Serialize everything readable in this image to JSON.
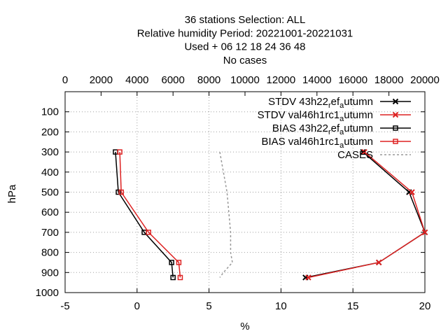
{
  "chart_data": {
    "type": "line",
    "title_lines": [
      "36 stations Selection: ALL",
      "Relative humidity  Period: 20221001-20221031",
      "Used   + 06 12 18 24 36 48",
      "No cases"
    ],
    "xlabel": "%",
    "ylabel": "hPa",
    "x_range": [
      -5,
      20
    ],
    "x_ticks": [
      "-5",
      "0",
      "5",
      "10",
      "15",
      "20"
    ],
    "x_tick_values": [
      -5,
      0,
      5,
      10,
      15,
      20
    ],
    "x2_range": [
      0,
      20000
    ],
    "x2_ticks": [
      "0",
      "2000",
      "4000",
      "6000",
      "8000",
      "10000",
      "12000",
      "14000",
      "16000",
      "18000",
      "20000"
    ],
    "x2_tick_values": [
      0,
      2000,
      4000,
      6000,
      8000,
      10000,
      12000,
      14000,
      16000,
      18000,
      20000
    ],
    "y_range": [
      1000,
      0
    ],
    "y_ticks": [
      "100",
      "200",
      "300",
      "400",
      "500",
      "600",
      "700",
      "800",
      "900",
      "1000"
    ],
    "y_tick_values": [
      100,
      200,
      300,
      400,
      500,
      600,
      700,
      800,
      900,
      1000
    ],
    "grid": true,
    "legend_position": "top-right",
    "series": [
      {
        "name": "STDV 43h22_ref_autumn",
        "legend_parts": [
          [
            "STDV 43h22",
            "n"
          ],
          [
            "r",
            "s"
          ],
          [
            "ef",
            "n"
          ],
          [
            "a",
            "s"
          ],
          [
            "utumn",
            "n"
          ]
        ],
        "color": "#000000",
        "marker": "x",
        "axis": "x",
        "points": [
          [
            15.7,
            300
          ],
          [
            18.9,
            500
          ],
          [
            20.0,
            700
          ],
          [
            16.8,
            850
          ],
          [
            11.7,
            925
          ]
        ]
      },
      {
        "name": "STDV val46h1rc1_autumn",
        "legend_parts": [
          [
            "STDV val46h1rc1",
            "n"
          ],
          [
            "a",
            "s"
          ],
          [
            "utumn",
            "n"
          ]
        ],
        "color": "#dd2222",
        "marker": "x",
        "axis": "x",
        "points": [
          [
            15.8,
            300
          ],
          [
            19.1,
            500
          ],
          [
            20.0,
            700
          ],
          [
            16.8,
            850
          ],
          [
            11.9,
            925
          ]
        ]
      },
      {
        "name": "BIAS 43h22_ref_autumn",
        "legend_parts": [
          [
            "BIAS 43h22",
            "n"
          ],
          [
            "r",
            "s"
          ],
          [
            "ef",
            "n"
          ],
          [
            "a",
            "s"
          ],
          [
            "utumn",
            "n"
          ]
        ],
        "color": "#000000",
        "marker": "square",
        "axis": "x",
        "points": [
          [
            -1.5,
            300
          ],
          [
            -1.3,
            500
          ],
          [
            0.5,
            700
          ],
          [
            2.4,
            850
          ],
          [
            2.5,
            925
          ]
        ]
      },
      {
        "name": "BIAS val46h1rc1_autumn",
        "legend_parts": [
          [
            "BIAS val46h1rc1",
            "n"
          ],
          [
            "a",
            "s"
          ],
          [
            "utumn",
            "n"
          ]
        ],
        "color": "#dd2222",
        "marker": "square",
        "axis": "x",
        "points": [
          [
            -1.2,
            300
          ],
          [
            -1.1,
            500
          ],
          [
            0.8,
            700
          ],
          [
            2.9,
            850
          ],
          [
            3.0,
            925
          ]
        ]
      },
      {
        "name": "CASES",
        "legend_parts": [
          [
            "CASES",
            "n"
          ]
        ],
        "color": "#999999",
        "marker": "none",
        "dashed": true,
        "axis": "x2",
        "points": [
          [
            8600,
            300
          ],
          [
            8800,
            400
          ],
          [
            9000,
            500
          ],
          [
            9100,
            600
          ],
          [
            9200,
            700
          ],
          [
            9200,
            800
          ],
          [
            9300,
            850
          ],
          [
            8800,
            900
          ],
          [
            8600,
            925
          ]
        ]
      }
    ]
  }
}
